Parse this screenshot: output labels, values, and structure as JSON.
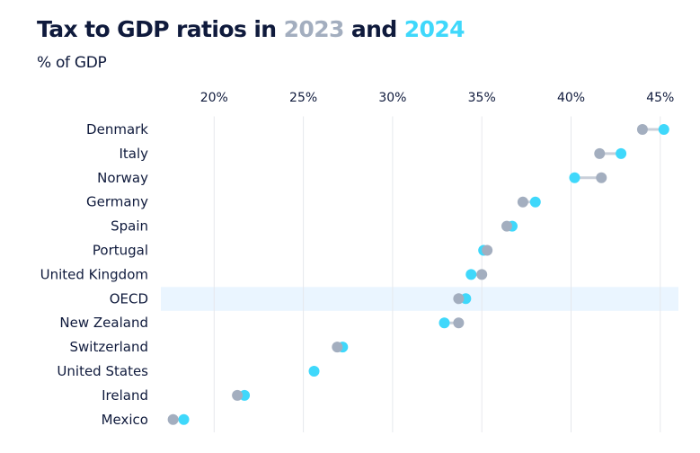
{
  "title": {
    "prefix": "Tax to GDP ratios in ",
    "year_a": "2023",
    "middle": " and ",
    "year_b": "2024"
  },
  "subtitle": "% of GDP",
  "colors": {
    "year_2023": "#a3aebf",
    "year_2024": "#3fd8fb",
    "connector": "#c9cfd9",
    "gridline": "#e6e8ec",
    "highlight": "#eaf5ff",
    "text": "#0f1a3c"
  },
  "chart_data": {
    "type": "dumbbell",
    "title": "Tax to GDP ratios in 2023 and 2024",
    "subtitle": "% of GDP",
    "xlabel": "",
    "ylabel": "",
    "xlim": [
      16.5,
      46
    ],
    "xticks": [
      20,
      25,
      30,
      35,
      40,
      45
    ],
    "xtick_labels": [
      "20%",
      "25%",
      "30%",
      "35%",
      "40%",
      "45%"
    ],
    "x_axis_position": "top",
    "grid": "vertical",
    "highlight_category": "OECD",
    "categories": [
      "Denmark",
      "Italy",
      "Norway",
      "Germany",
      "Spain",
      "Portugal",
      "United Kingdom",
      "OECD",
      "New Zealand",
      "Switzerland",
      "United States",
      "Ireland",
      "Mexico"
    ],
    "series": [
      {
        "name": "2023",
        "values": [
          44.0,
          41.6,
          41.7,
          37.3,
          36.4,
          35.3,
          35.0,
          33.7,
          33.7,
          26.9,
          null,
          21.3,
          17.7
        ]
      },
      {
        "name": "2024",
        "values": [
          45.2,
          42.8,
          40.2,
          38.0,
          36.7,
          35.1,
          34.4,
          34.1,
          32.9,
          27.2,
          25.6,
          21.7,
          18.3
        ]
      }
    ]
  }
}
